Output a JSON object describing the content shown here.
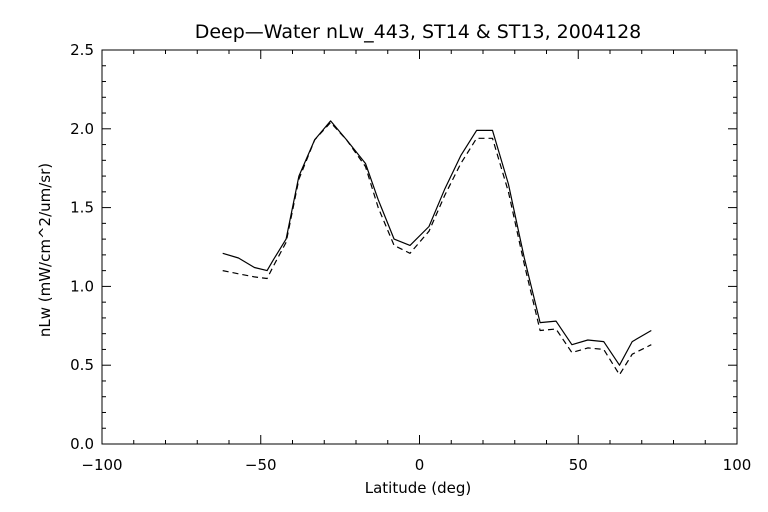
{
  "chart_data": {
    "type": "line",
    "title": "Deep—Water nLw_443, ST14 & ST13, 2004128",
    "xlabel": "Latitude (deg)",
    "ylabel": "nLw (mW/cm^2/um/sr)",
    "xlim": [
      -100,
      100
    ],
    "ylim": [
      0.0,
      2.5
    ],
    "xticks": [
      "−100",
      "−50",
      "0",
      "50",
      "100"
    ],
    "yticks": [
      "0.0",
      "0.5",
      "1.0",
      "1.5",
      "2.0",
      "2.5"
    ],
    "grid": false,
    "series": [
      {
        "style": "solid",
        "color": "#000000",
        "x": [
          -62,
          -57,
          -52,
          -48,
          -46,
          -42,
          -38,
          -33,
          -28,
          -23,
          -17,
          -13,
          -8,
          -3,
          3,
          8,
          13,
          18,
          23,
          28,
          33,
          38,
          43,
          48,
          53,
          58,
          63,
          67,
          73
        ],
        "y": [
          1.21,
          1.18,
          1.12,
          1.1,
          1.17,
          1.3,
          1.7,
          1.93,
          2.05,
          1.93,
          1.78,
          1.55,
          1.3,
          1.26,
          1.38,
          1.62,
          1.83,
          1.99,
          1.99,
          1.65,
          1.18,
          0.77,
          0.78,
          0.63,
          0.66,
          0.65,
          0.5,
          0.65,
          0.72
        ]
      },
      {
        "style": "dashed",
        "color": "#000000",
        "x": [
          -62,
          -57,
          -52,
          -48,
          -46,
          -42,
          -38,
          -33,
          -28,
          -23,
          -17,
          -13,
          -8,
          -3,
          3,
          8,
          13,
          18,
          23,
          28,
          33,
          38,
          43,
          48,
          53,
          58,
          63,
          67,
          73
        ],
        "y": [
          1.1,
          1.08,
          1.06,
          1.05,
          1.13,
          1.28,
          1.68,
          1.93,
          2.04,
          1.93,
          1.76,
          1.5,
          1.26,
          1.21,
          1.35,
          1.58,
          1.78,
          1.94,
          1.94,
          1.6,
          1.14,
          0.72,
          0.73,
          0.58,
          0.61,
          0.6,
          0.44,
          0.57,
          0.63
        ]
      }
    ]
  }
}
